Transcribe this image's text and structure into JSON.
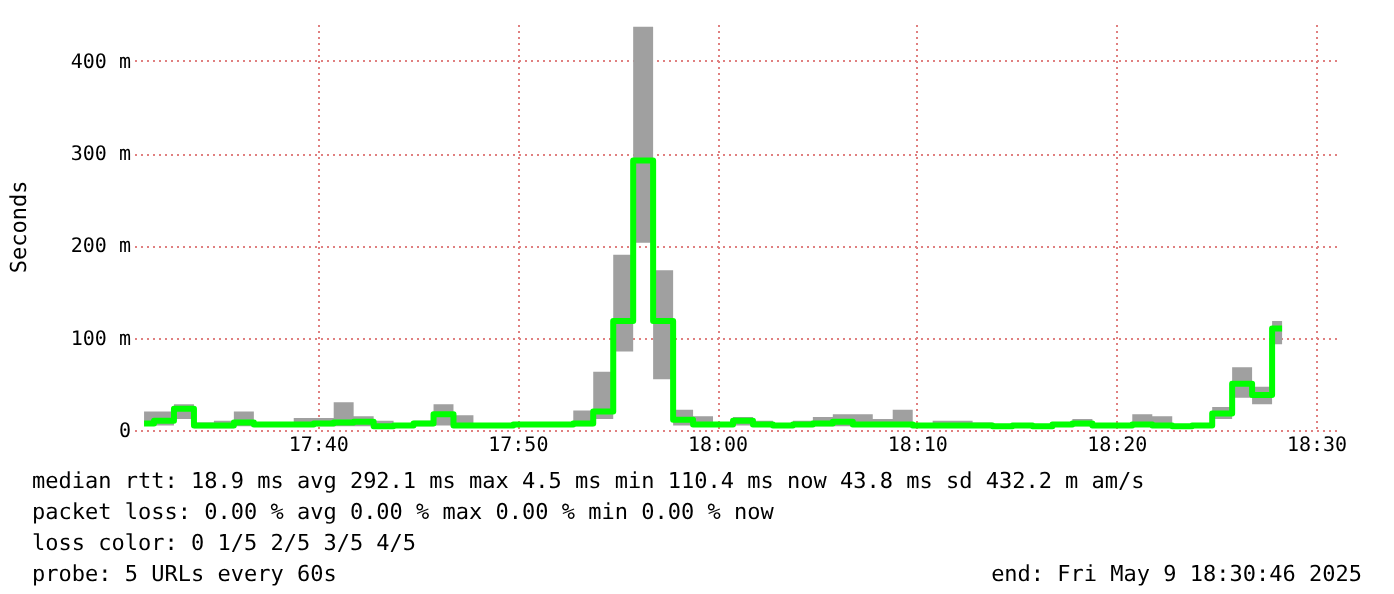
{
  "chart_data": {
    "type": "step",
    "ylabel": "Seconds",
    "x": [
      17.5217,
      17.5383,
      17.555,
      17.5717,
      17.5883,
      17.605,
      17.6217,
      17.6383,
      17.655,
      17.6717,
      17.6883,
      17.705,
      17.7217,
      17.7383,
      17.755,
      17.7717,
      17.7883,
      17.805,
      17.8217,
      17.8383,
      17.855,
      17.8717,
      17.8883,
      17.905,
      17.9217,
      17.9383,
      17.955,
      17.9717,
      17.9883,
      18.005,
      18.0217,
      18.0383,
      18.055,
      18.0717,
      18.0883,
      18.105,
      18.1217,
      18.1383,
      18.155,
      18.1717,
      18.1883,
      18.205,
      18.2217,
      18.2383,
      18.255,
      18.2717,
      18.2883,
      18.305,
      18.3217,
      18.3383,
      18.355,
      18.3717,
      18.3883,
      18.405,
      18.4217,
      18.4383,
      18.455,
      18.4717
    ],
    "series": [
      {
        "color": "#00ff00",
        "values": [
          7,
          10,
          23,
          5,
          5,
          8,
          6,
          6,
          6,
          7,
          8,
          9,
          4,
          5,
          7,
          17,
          5,
          5,
          5,
          6,
          6,
          6,
          7,
          20,
          118,
          292,
          118,
          11,
          6,
          6,
          10,
          6,
          5,
          6,
          7,
          9,
          6,
          6,
          6,
          5,
          5,
          5,
          5,
          4,
          5,
          4,
          6,
          7,
          5,
          5,
          6,
          5,
          4,
          5,
          18,
          50,
          38,
          110
        ],
        "lower": [
          5,
          5,
          12,
          2,
          2,
          4,
          4,
          4,
          4,
          4,
          4,
          4,
          2,
          3,
          4,
          5,
          4,
          4,
          4,
          4,
          4,
          4,
          4,
          12,
          85,
          203,
          55,
          5,
          4,
          4,
          5,
          4,
          4,
          4,
          4,
          4,
          4,
          4,
          4,
          4,
          4,
          4,
          4,
          2,
          4,
          2,
          4,
          4,
          4,
          4,
          4,
          4,
          2,
          4,
          12,
          35,
          28,
          93
        ],
        "upper": [
          20,
          20,
          28,
          8,
          10,
          20,
          8,
          8,
          13,
          13,
          30,
          15,
          10,
          6,
          10,
          28,
          16,
          6,
          6,
          8,
          8,
          8,
          21,
          63,
          190,
          437,
          173,
          22,
          15,
          6,
          14,
          10,
          6,
          10,
          14,
          17,
          17,
          12,
          22,
          6,
          10,
          10,
          8,
          6,
          6,
          6,
          8,
          12,
          6,
          6,
          17,
          15,
          5,
          6,
          25,
          68,
          47,
          118
        ]
      }
    ],
    "xlim": [
      17.5133,
      18.5167
    ],
    "xticks": [
      {
        "value": 17.6667,
        "label": "17:40"
      },
      {
        "value": 17.8333,
        "label": "17:50"
      },
      {
        "value": 18,
        "label": "18:00"
      },
      {
        "value": 18.1667,
        "label": "18:10"
      },
      {
        "value": 18.3333,
        "label": "18:20"
      },
      {
        "value": 18.5,
        "label": "18:30"
      }
    ],
    "ylim": [
      0,
      440
    ],
    "yticks": [
      {
        "value": 0,
        "label": "0"
      },
      {
        "value": 100,
        "label": "100 m"
      },
      {
        "value": 200,
        "label": "200 m"
      },
      {
        "value": 300,
        "label": "300 m"
      },
      {
        "value": 400,
        "label": "400 m"
      }
    ],
    "grid": true,
    "annotations": [
      "median rtt:  18.9 ms avg  292.1 ms max  4.5 ms min  110.4 ms now  43.8 ms sd  432.2 m am/s",
      "packet loss: 0.00 % avg  0.00 % max  0.00 % min  0.00 % now",
      "loss color:  0  1/5  2/5  3/5  4/5",
      "probe:       5 URLs every 60s",
      "end: Fri May  9 18:30:46 2025"
    ]
  }
}
